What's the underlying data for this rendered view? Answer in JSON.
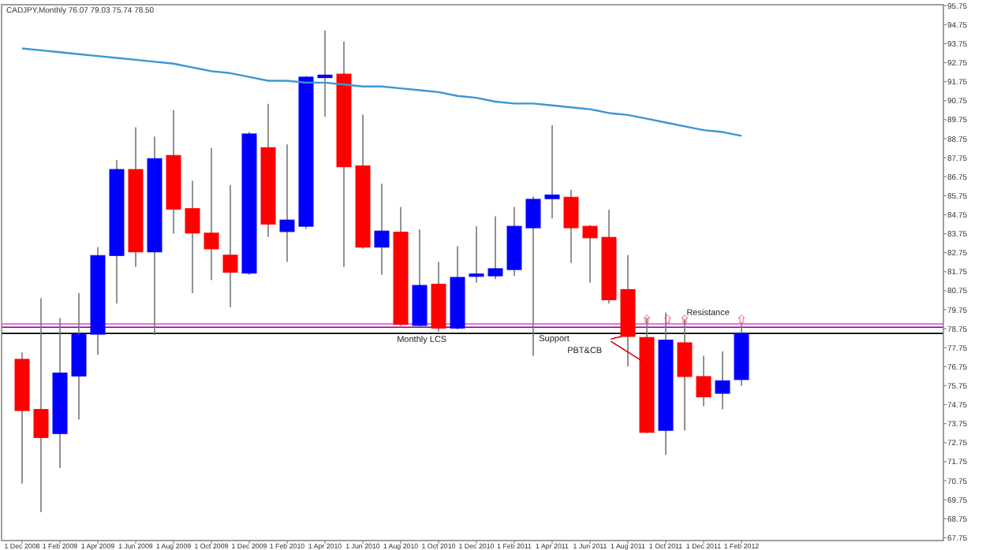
{
  "chart_data": {
    "type": "candlestick",
    "title": "CADJPY,Monthly  76.07 79.03 75.74 78.50",
    "categories": [
      "1 Dec 2008",
      null,
      "1 Feb 2009",
      null,
      "1 Apr 2009",
      null,
      "1 Jun 2009",
      null,
      "1 Aug 2009",
      null,
      "1 Oct 2009",
      null,
      "1 Dec 2009",
      null,
      "1 Feb 2010",
      null,
      "1 Apr 2010",
      null,
      "1 Jun 2010",
      null,
      "1 Aug 2010",
      null,
      "1 Oct 2010",
      null,
      "1 Dec 2010",
      null,
      "1 Feb 2011",
      null,
      "1 Apr 2011",
      null,
      "1 Jun 2011",
      null,
      "1 Aug 2011",
      null,
      "1 Oct 2011",
      null,
      "1 Dec 2011",
      null,
      "1 Feb 2012"
    ],
    "ohlc": [
      [
        77.14,
        77.5,
        70.6,
        74.44
      ],
      [
        74.5,
        80.35,
        69.09,
        73.02
      ],
      [
        73.23,
        79.3,
        71.42,
        76.42
      ],
      [
        76.26,
        80.62,
        73.97,
        78.46
      ],
      [
        78.46,
        83.04,
        77.38,
        82.6
      ],
      [
        82.6,
        87.62,
        80.07,
        87.13
      ],
      [
        87.13,
        89.35,
        82.0,
        82.79
      ],
      [
        82.79,
        88.86,
        78.42,
        87.7
      ],
      [
        87.87,
        90.26,
        83.75,
        85.04
      ],
      [
        85.07,
        86.53,
        80.62,
        83.78
      ],
      [
        83.78,
        88.26,
        81.31,
        82.95
      ],
      [
        82.62,
        86.31,
        79.88,
        81.72
      ],
      [
        81.67,
        89.1,
        81.59,
        89.0
      ],
      [
        88.28,
        90.59,
        83.59,
        84.25
      ],
      [
        83.86,
        88.45,
        82.27,
        84.47
      ],
      [
        84.14,
        92.05,
        84.0,
        91.99
      ],
      [
        91.96,
        94.44,
        89.9,
        92.1
      ],
      [
        92.15,
        93.86,
        82.0,
        87.27
      ],
      [
        87.32,
        90.01,
        82.95,
        83.04
      ],
      [
        83.04,
        86.39,
        81.59,
        83.89
      ],
      [
        83.83,
        85.15,
        78.9,
        78.97
      ],
      [
        78.92,
        83.97,
        78.85,
        81.03
      ],
      [
        81.09,
        82.27,
        78.6,
        78.78
      ],
      [
        78.78,
        83.09,
        78.7,
        81.45
      ],
      [
        81.5,
        84.14,
        81.17,
        81.63
      ],
      [
        81.53,
        84.66,
        81.36,
        81.91
      ],
      [
        81.86,
        85.15,
        81.53,
        84.14
      ],
      [
        84.06,
        85.7,
        77.33,
        85.56
      ],
      [
        85.59,
        89.46,
        84.55,
        85.79
      ],
      [
        85.67,
        86.06,
        82.21,
        84.06
      ],
      [
        84.14,
        84.2,
        81.17,
        83.53
      ],
      [
        83.56,
        85.01,
        80.07,
        80.27
      ],
      [
        80.81,
        82.62,
        76.77,
        78.34
      ],
      [
        78.29,
        79.33,
        73.25,
        73.29
      ],
      [
        73.4,
        79.61,
        72.11,
        78.15
      ],
      [
        78.01,
        79.25,
        73.4,
        76.23
      ],
      [
        76.23,
        77.33,
        74.67,
        75.16
      ],
      [
        75.35,
        77.55,
        74.5,
        76.01
      ],
      [
        76.07,
        79.03,
        75.74,
        78.5
      ]
    ],
    "colors": [
      "#ff0000",
      "#ff0000",
      "#0000ff",
      "#0000ff",
      "#0000ff",
      "#0000ff",
      "#ff0000",
      "#0000ff",
      "#ff0000",
      "#ff0000",
      "#ff0000",
      "#ff0000",
      "#0000ff",
      "#ff0000",
      "#0000ff",
      "#0000ff",
      "#0000ff",
      "#ff0000",
      "#ff0000",
      "#0000ff",
      "#ff0000",
      "#0000ff",
      "#ff0000",
      "#0000ff",
      "#0000ff",
      "#0000ff",
      "#0000ff",
      "#0000ff",
      "#0000ff",
      "#ff0000",
      "#ff0000",
      "#ff0000",
      "#ff0000",
      "#ff0000",
      "#0000ff",
      "#ff0000",
      "#ff0000",
      "#0000ff",
      "#0000ff"
    ],
    "series": [
      {
        "type": "line",
        "color": "#3c96d2",
        "values": [
          93.5,
          93.4,
          93.3,
          93.2,
          93.1,
          93.0,
          92.9,
          92.8,
          92.7,
          92.5,
          92.3,
          92.2,
          92.0,
          91.8,
          91.8,
          91.7,
          91.7,
          91.6,
          91.5,
          91.5,
          91.4,
          91.3,
          91.2,
          91.0,
          90.9,
          90.7,
          90.6,
          90.6,
          90.5,
          90.4,
          90.3,
          90.1,
          90.0,
          89.8,
          89.6,
          89.4,
          89.2,
          89.1,
          88.9
        ]
      }
    ],
    "ylim": [
      67.6,
      95.8
    ],
    "yticks": [
      67.75,
      68.75,
      69.75,
      70.75,
      71.75,
      72.75,
      73.75,
      74.75,
      75.75,
      76.75,
      77.75,
      78.75,
      79.75,
      80.75,
      81.75,
      82.75,
      83.75,
      84.75,
      85.75,
      86.75,
      87.75,
      88.75,
      89.75,
      90.75,
      91.75,
      92.75,
      93.75,
      94.75,
      95.75
    ],
    "ref_lines": [
      {
        "axis": "y",
        "value": 79.0,
        "color": "#e060e0"
      },
      {
        "axis": "y",
        "value": 78.83,
        "color": "#800080"
      },
      {
        "axis": "y",
        "value": 78.5,
        "color": "#000000"
      }
    ],
    "annotations": [
      "Monthly LCS",
      "Support",
      "PBT&CB",
      "Resistance"
    ],
    "grid": false
  }
}
